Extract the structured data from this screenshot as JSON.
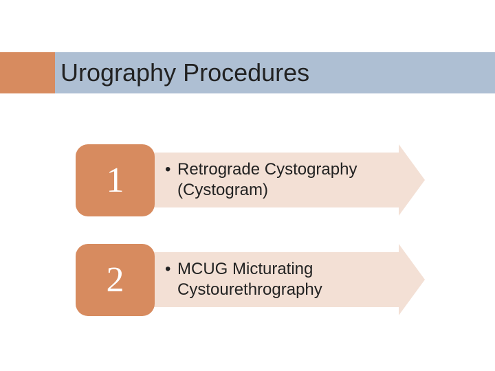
{
  "type": "infographic",
  "background_color": "#ffffff",
  "title": {
    "text": "Urography Procedures",
    "fontsize": 36,
    "color": "#222222",
    "accent_color": "#d78b5f",
    "bar_color": "#aebfd3"
  },
  "items": [
    {
      "number": "1",
      "text": "Retrograde Cystography (Cystogram)",
      "number_bg": "#d78b5f",
      "number_color": "#ffffff",
      "arrow_color": "#f3e0d5",
      "text_color": "#222222",
      "fontsize": 24,
      "number_fontsize": 52,
      "border_radius": 18
    },
    {
      "number": "2",
      "text": "MCUG Micturating Cystourethrography",
      "number_bg": "#d78b5f",
      "number_color": "#ffffff",
      "arrow_color": "#f3e0d5",
      "text_color": "#222222",
      "fontsize": 24,
      "number_fontsize": 52,
      "border_radius": 18
    }
  ]
}
